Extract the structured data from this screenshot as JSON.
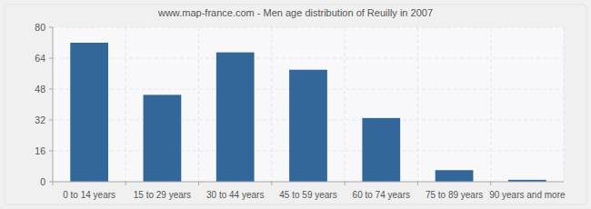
{
  "chart_data": {
    "type": "bar",
    "title": "www.map-france.com - Men age distribution of Reuilly in 2007",
    "categories": [
      "0 to 14 years",
      "15 to 29 years",
      "30 to 44 years",
      "45 to 59 years",
      "60 to 74 years",
      "75 to 89 years",
      "90 years and more"
    ],
    "values": [
      72,
      45,
      67,
      58,
      33,
      6,
      1
    ],
    "color": "#336699",
    "ylim": [
      0,
      80
    ],
    "yticks": [
      0,
      16,
      32,
      48,
      64,
      80
    ],
    "grid": true
  }
}
